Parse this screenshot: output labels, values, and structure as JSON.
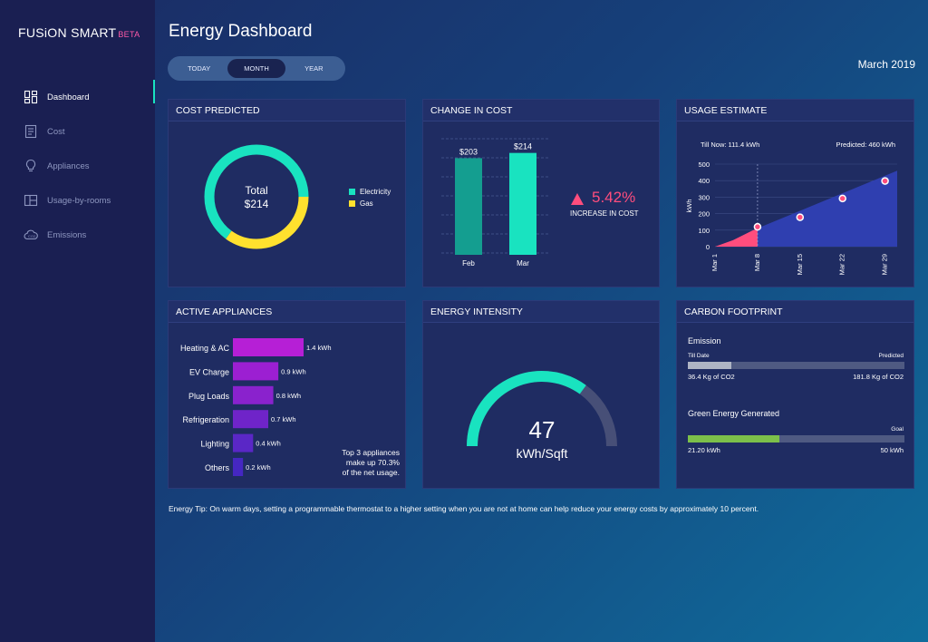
{
  "app": {
    "brand": "FUSiON SMART",
    "badge": "BETA"
  },
  "sidebar": {
    "items": [
      {
        "label": "Dashboard",
        "icon": "dashboard-icon",
        "active": true
      },
      {
        "label": "Cost",
        "icon": "cost-icon",
        "active": false
      },
      {
        "label": "Appliances",
        "icon": "appliances-icon",
        "active": false
      },
      {
        "label": "Usage-by-rooms",
        "icon": "rooms-icon",
        "active": false
      },
      {
        "label": "Emissions",
        "icon": "emissions-icon",
        "active": false
      }
    ]
  },
  "header": {
    "title": "Energy Dashboard",
    "date": "March 2019",
    "periods": [
      "TODAY",
      "MONTH",
      "YEAR"
    ],
    "active_period": "MONTH"
  },
  "colors": {
    "accent": "#19e3c0",
    "gas": "#ffe12e",
    "alert": "#ff4d7d",
    "bar_magenta": "#b61fd6",
    "green": "#7cc04a"
  },
  "cost_predicted": {
    "title": "COST PREDICTED",
    "total_label": "Total",
    "total_value": "$214",
    "legend": [
      "Electricity",
      "Gas"
    ],
    "chart_data": {
      "type": "pie",
      "labels": [
        "Electricity",
        "Gas"
      ],
      "values": [
        65,
        35
      ]
    }
  },
  "change_in_cost": {
    "title": "CHANGE IN COST",
    "percent": "5.42%",
    "caption": "INCREASE IN COST",
    "chart_data": {
      "type": "bar",
      "categories": [
        "Feb",
        "Mar"
      ],
      "values": [
        203,
        214
      ],
      "labels": [
        "$203",
        "$214"
      ],
      "ylim": [
        0,
        240
      ]
    }
  },
  "usage_estimate": {
    "title": "USAGE ESTIMATE",
    "till_now": "Till Now: 111.4 kWh",
    "predicted": "Predicted: 460 kWh",
    "chart_data": {
      "type": "area",
      "ylabel": "kWh",
      "yticks": [
        0,
        100,
        200,
        300,
        400,
        500
      ],
      "ylim": [
        0,
        500
      ],
      "xticks": [
        "Mar 1",
        "Mar 8",
        "Mar 15",
        "Mar 22",
        "Mar 29"
      ],
      "xlim": [
        1,
        31
      ],
      "actual": {
        "x": [
          1,
          4,
          7,
          8
        ],
        "y": [
          0,
          40,
          95,
          111
        ]
      },
      "predicted": {
        "x": [
          8,
          31
        ],
        "y": [
          111,
          460
        ]
      },
      "points": {
        "x": [
          8,
          15,
          22,
          29
        ],
        "y": [
          120,
          178,
          292,
          398
        ]
      },
      "marker_x": 8
    }
  },
  "active_appliances": {
    "title": "ACTIVE APPLIANCES",
    "note": [
      "Top 3 appliances",
      "make up 70.3%",
      "of the net usage."
    ],
    "chart_data": {
      "type": "bar",
      "orientation": "horizontal",
      "categories": [
        "Heating & AC",
        "EV Charge",
        "Plug Loads",
        "Refrigeration",
        "Lighting",
        "Others"
      ],
      "values": [
        1.4,
        0.9,
        0.8,
        0.7,
        0.4,
        0.2
      ],
      "labels": [
        "1.4 kWh",
        "0.9 kWh",
        "0.8 kWh",
        "0.7 kWh",
        "0.4 kWh",
        "0.2 kWh"
      ],
      "colors": [
        "#b61fd6",
        "#9c1fd2",
        "#8a22cd",
        "#6f24c9",
        "#5a27c6",
        "#4527c2"
      ]
    }
  },
  "energy_intensity": {
    "title": "ENERGY INTENSITY",
    "value": "47",
    "unit": "kWh/Sqft",
    "fraction": 0.7
  },
  "carbon_footprint": {
    "title": "CARBON FOOTPRINT",
    "emission": {
      "title": "Emission",
      "left_label": "Till Date",
      "right_label": "Predicted",
      "left_value": "36.4 Kg of CO2",
      "right_value": "181.8 Kg of CO2",
      "fraction": 0.2
    },
    "green": {
      "title": "Green Energy Generated",
      "right_label": "Goal",
      "left_value": "21.20 kWh",
      "right_value": "50 kWh",
      "fraction": 0.424
    }
  },
  "tip": "Energy Tip: On warm days, setting a programmable thermostat to a higher setting when you are not at home can help reduce your energy costs by approximately 10 percent."
}
